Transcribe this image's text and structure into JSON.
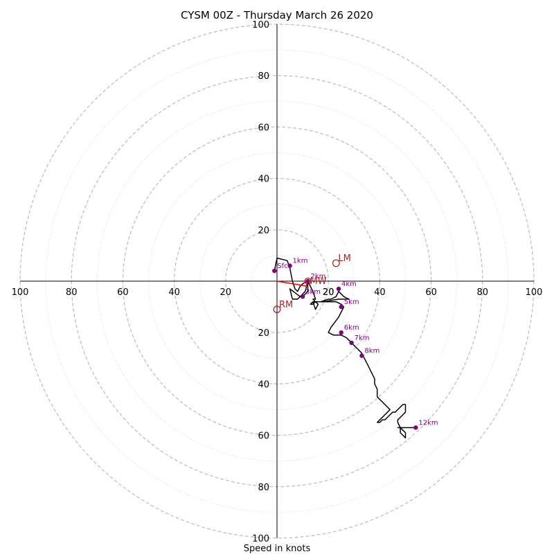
{
  "chart_data": {
    "type": "hodograph",
    "title": "CYSM 00Z - Thursday March 26 2020",
    "xlabel": "Speed in knots",
    "range": 100,
    "major_rings": [
      20,
      40,
      60,
      80,
      100
    ],
    "minor_rings": [
      10,
      30,
      50,
      70,
      90
    ],
    "tick_labels": [
      "20",
      "40",
      "60",
      "80",
      "100"
    ],
    "inner_tick_label": "20",
    "hodograph_trace": [
      [
        -1,
        4
      ],
      [
        0,
        9
      ],
      [
        4,
        8
      ],
      [
        5,
        5
      ],
      [
        6,
        0
      ],
      [
        7,
        -3
      ],
      [
        8,
        -4
      ],
      [
        9,
        -2
      ],
      [
        10,
        -1
      ],
      [
        12,
        0
      ],
      [
        11,
        -4
      ],
      [
        8,
        -7
      ],
      [
        6,
        -7
      ],
      [
        5,
        -3
      ],
      [
        9,
        -6
      ],
      [
        10,
        -6
      ],
      [
        12,
        -4
      ],
      [
        12,
        0
      ],
      [
        14,
        -4
      ],
      [
        15,
        -7
      ],
      [
        14,
        -7
      ],
      [
        15,
        -8
      ],
      [
        17,
        -8
      ],
      [
        20,
        -7
      ],
      [
        21,
        -7
      ],
      [
        23,
        -6
      ],
      [
        24,
        -4
      ],
      [
        26,
        -6
      ],
      [
        28,
        -7
      ],
      [
        24,
        -7
      ],
      [
        18,
        -8
      ],
      [
        17,
        -8
      ],
      [
        16,
        -8
      ],
      [
        15,
        -8
      ],
      [
        14,
        -8
      ],
      [
        13,
        -9
      ],
      [
        14,
        -9
      ],
      [
        15,
        -8
      ],
      [
        16,
        -8
      ],
      [
        15,
        -8
      ],
      [
        16,
        -9
      ],
      [
        15,
        -11
      ],
      [
        14,
        -8
      ],
      [
        19,
        -8
      ],
      [
        23,
        -8
      ],
      [
        25,
        -9
      ],
      [
        26,
        -10
      ],
      [
        24,
        -14
      ],
      [
        21,
        -18
      ],
      [
        20,
        -20
      ],
      [
        22,
        -21
      ],
      [
        25,
        -21
      ],
      [
        27,
        -22
      ],
      [
        28,
        -23
      ],
      [
        29,
        -24
      ],
      [
        30,
        -25
      ],
      [
        31,
        -26
      ],
      [
        33,
        -28
      ],
      [
        34,
        -30
      ],
      [
        35,
        -32
      ],
      [
        36,
        -34
      ],
      [
        37,
        -36
      ],
      [
        38,
        -38
      ],
      [
        38,
        -40
      ],
      [
        39,
        -42
      ],
      [
        39,
        -45
      ],
      [
        40,
        -46
      ],
      [
        41,
        -47
      ],
      [
        42,
        -48
      ],
      [
        43,
        -49
      ],
      [
        44,
        -50
      ],
      [
        43,
        -51
      ],
      [
        42,
        -52
      ],
      [
        41,
        -53
      ],
      [
        40,
        -54
      ],
      [
        39,
        -55
      ],
      [
        40,
        -55
      ],
      [
        41,
        -54
      ],
      [
        42,
        -54
      ],
      [
        43,
        -53
      ],
      [
        44,
        -52
      ],
      [
        45,
        -51
      ],
      [
        46,
        -51
      ],
      [
        47,
        -50
      ],
      [
        48,
        -49
      ],
      [
        49,
        -48
      ],
      [
        50,
        -48
      ],
      [
        50,
        -51
      ],
      [
        49,
        -52
      ],
      [
        48,
        -53
      ],
      [
        47,
        -54
      ],
      [
        47,
        -55
      ],
      [
        48,
        -57
      ],
      [
        49,
        -58
      ],
      [
        50,
        -59
      ],
      [
        50,
        -60
      ],
      [
        50,
        -61
      ],
      [
        49,
        -60
      ],
      [
        48,
        -59
      ],
      [
        48,
        -58
      ],
      [
        48,
        -57
      ],
      [
        47,
        -57
      ],
      [
        48,
        -57
      ],
      [
        50,
        -57
      ],
      [
        52,
        -57
      ],
      [
        54,
        -57
      ]
    ],
    "height_markers": [
      {
        "label": "Sfc",
        "u": -1,
        "v": 4
      },
      {
        "label": "1km",
        "u": 5,
        "v": 6
      },
      {
        "label": "2km",
        "u": 12,
        "v": 0
      },
      {
        "label": "3km",
        "u": 10,
        "v": -6
      },
      {
        "label": "4km",
        "u": 24,
        "v": -3
      },
      {
        "label": "5km",
        "u": 25,
        "v": -10
      },
      {
        "label": "6km",
        "u": 25,
        "v": -20
      },
      {
        "label": "7km",
        "u": 29,
        "v": -24
      },
      {
        "label": "8km",
        "u": 33,
        "v": -29
      },
      {
        "label": "12km",
        "u": 54,
        "v": -57
      }
    ],
    "storm_motion": [
      {
        "label": "LM",
        "u": 23,
        "v": 7
      },
      {
        "label": "RM",
        "u": 0,
        "v": -11
      },
      {
        "label": "MW",
        "u": 12,
        "v": 0
      }
    ],
    "shear_vector": {
      "from": [
        0,
        0
      ],
      "to": [
        12,
        -2
      ]
    },
    "colors": {
      "trace": "#000000",
      "marker": "#800080",
      "storm": "#b22222",
      "shear": "#ff0000",
      "major_ring": "#bbbbbb",
      "minor_ring": "#dddddd"
    }
  }
}
